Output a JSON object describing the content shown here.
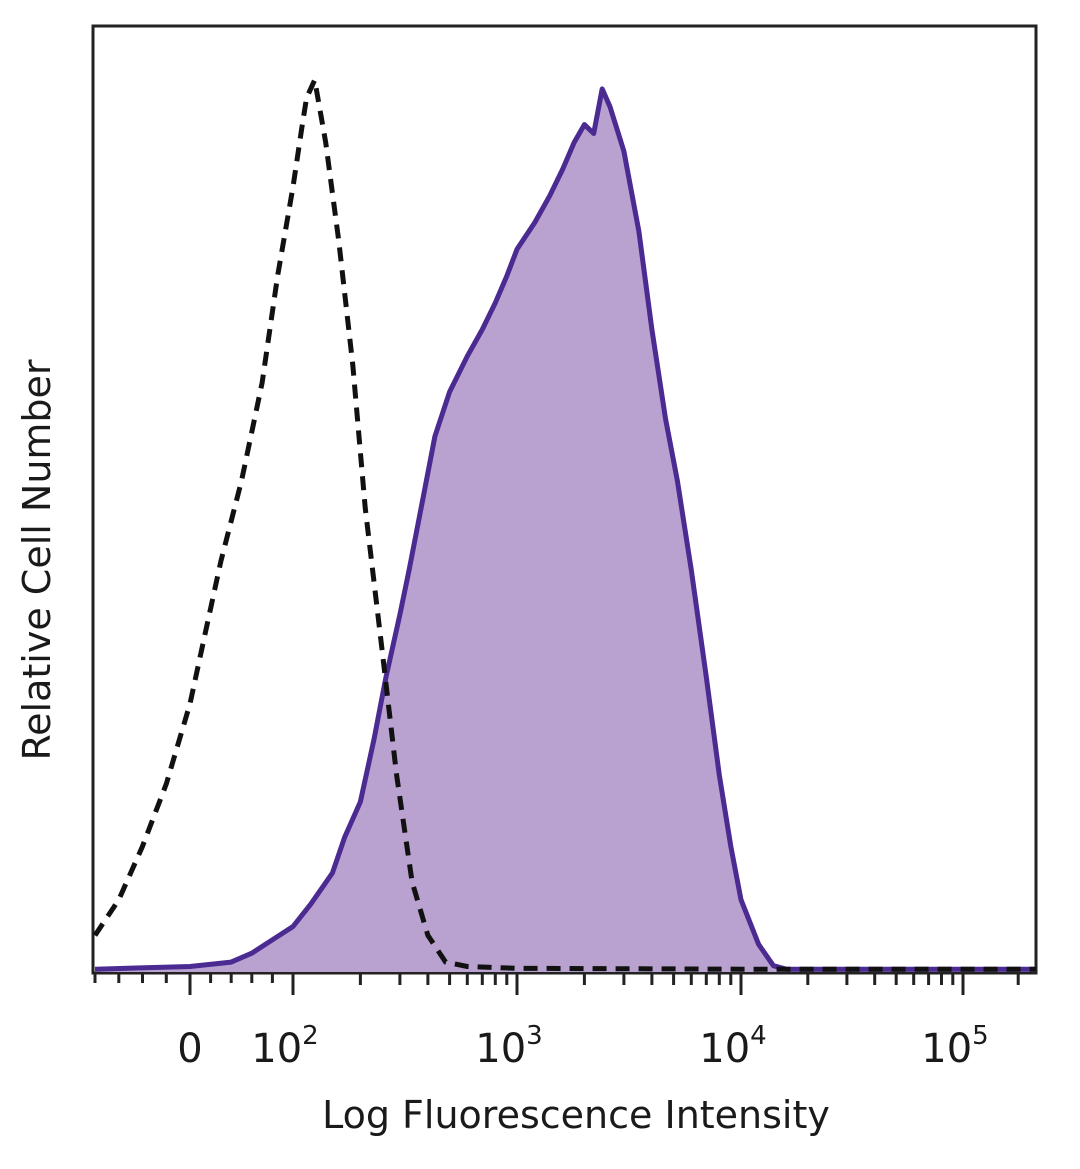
{
  "chart_data": {
    "type": "area",
    "title": "",
    "xlabel": "Log Fluorescence Intensity",
    "ylabel": "Relative Cell Number",
    "x_scale": "biexponential",
    "xlim": [
      -80,
      250000
    ],
    "ylim": [
      0,
      1.0
    ],
    "x_ticks": [
      {
        "label": "0",
        "base": "0",
        "exp": "",
        "value": 0
      },
      {
        "label": "10^2",
        "base": "10",
        "exp": "2",
        "value": 100
      },
      {
        "label": "10^3",
        "base": "10",
        "exp": "3",
        "value": 1000
      },
      {
        "label": "10^4",
        "base": "10",
        "exp": "4",
        "value": 10000
      },
      {
        "label": "10^5",
        "base": "10",
        "exp": "5",
        "value": 100000
      }
    ],
    "grid": false,
    "legend": "none",
    "series": [
      {
        "style": "dashed-outline",
        "color": "#111111",
        "fill": "none",
        "points": [
          [
            -80,
            0.04
          ],
          [
            -60,
            0.08
          ],
          [
            -40,
            0.14
          ],
          [
            -20,
            0.21
          ],
          [
            0,
            0.3
          ],
          [
            15,
            0.38
          ],
          [
            30,
            0.46
          ],
          [
            50,
            0.55
          ],
          [
            70,
            0.66
          ],
          [
            85,
            0.78
          ],
          [
            100,
            0.88
          ],
          [
            110,
            0.95
          ],
          [
            115,
            0.98
          ],
          [
            125,
            1.0
          ],
          [
            140,
            0.93
          ],
          [
            160,
            0.82
          ],
          [
            185,
            0.68
          ],
          [
            210,
            0.52
          ],
          [
            250,
            0.36
          ],
          [
            290,
            0.22
          ],
          [
            340,
            0.1
          ],
          [
            400,
            0.04
          ],
          [
            480,
            0.01
          ],
          [
            600,
            0.005
          ],
          [
            1000,
            0.003
          ],
          [
            10000,
            0.002
          ],
          [
            250000,
            0.002
          ]
        ]
      },
      {
        "style": "filled",
        "color": "#4b2a91",
        "fill": "#b9a2cf",
        "points": [
          [
            -80,
            0.002
          ],
          [
            0,
            0.005
          ],
          [
            40,
            0.01
          ],
          [
            60,
            0.02
          ],
          [
            80,
            0.035
          ],
          [
            100,
            0.05
          ],
          [
            120,
            0.075
          ],
          [
            150,
            0.11
          ],
          [
            170,
            0.15
          ],
          [
            200,
            0.19
          ],
          [
            230,
            0.26
          ],
          [
            260,
            0.33
          ],
          [
            300,
            0.4
          ],
          [
            330,
            0.45
          ],
          [
            380,
            0.53
          ],
          [
            430,
            0.6
          ],
          [
            500,
            0.65
          ],
          [
            600,
            0.69
          ],
          [
            700,
            0.72
          ],
          [
            800,
            0.75
          ],
          [
            900,
            0.78
          ],
          [
            1000,
            0.81
          ],
          [
            1200,
            0.84
          ],
          [
            1400,
            0.87
          ],
          [
            1600,
            0.9
          ],
          [
            1800,
            0.93
          ],
          [
            2000,
            0.95
          ],
          [
            2200,
            0.94
          ],
          [
            2400,
            0.99
          ],
          [
            2600,
            0.97
          ],
          [
            3000,
            0.92
          ],
          [
            3500,
            0.83
          ],
          [
            4000,
            0.72
          ],
          [
            4600,
            0.62
          ],
          [
            5200,
            0.55
          ],
          [
            6000,
            0.45
          ],
          [
            7000,
            0.33
          ],
          [
            8000,
            0.22
          ],
          [
            9000,
            0.14
          ],
          [
            10000,
            0.08
          ],
          [
            12000,
            0.03
          ],
          [
            14000,
            0.006
          ],
          [
            16000,
            0.002
          ],
          [
            250000,
            0.002
          ]
        ]
      }
    ]
  }
}
